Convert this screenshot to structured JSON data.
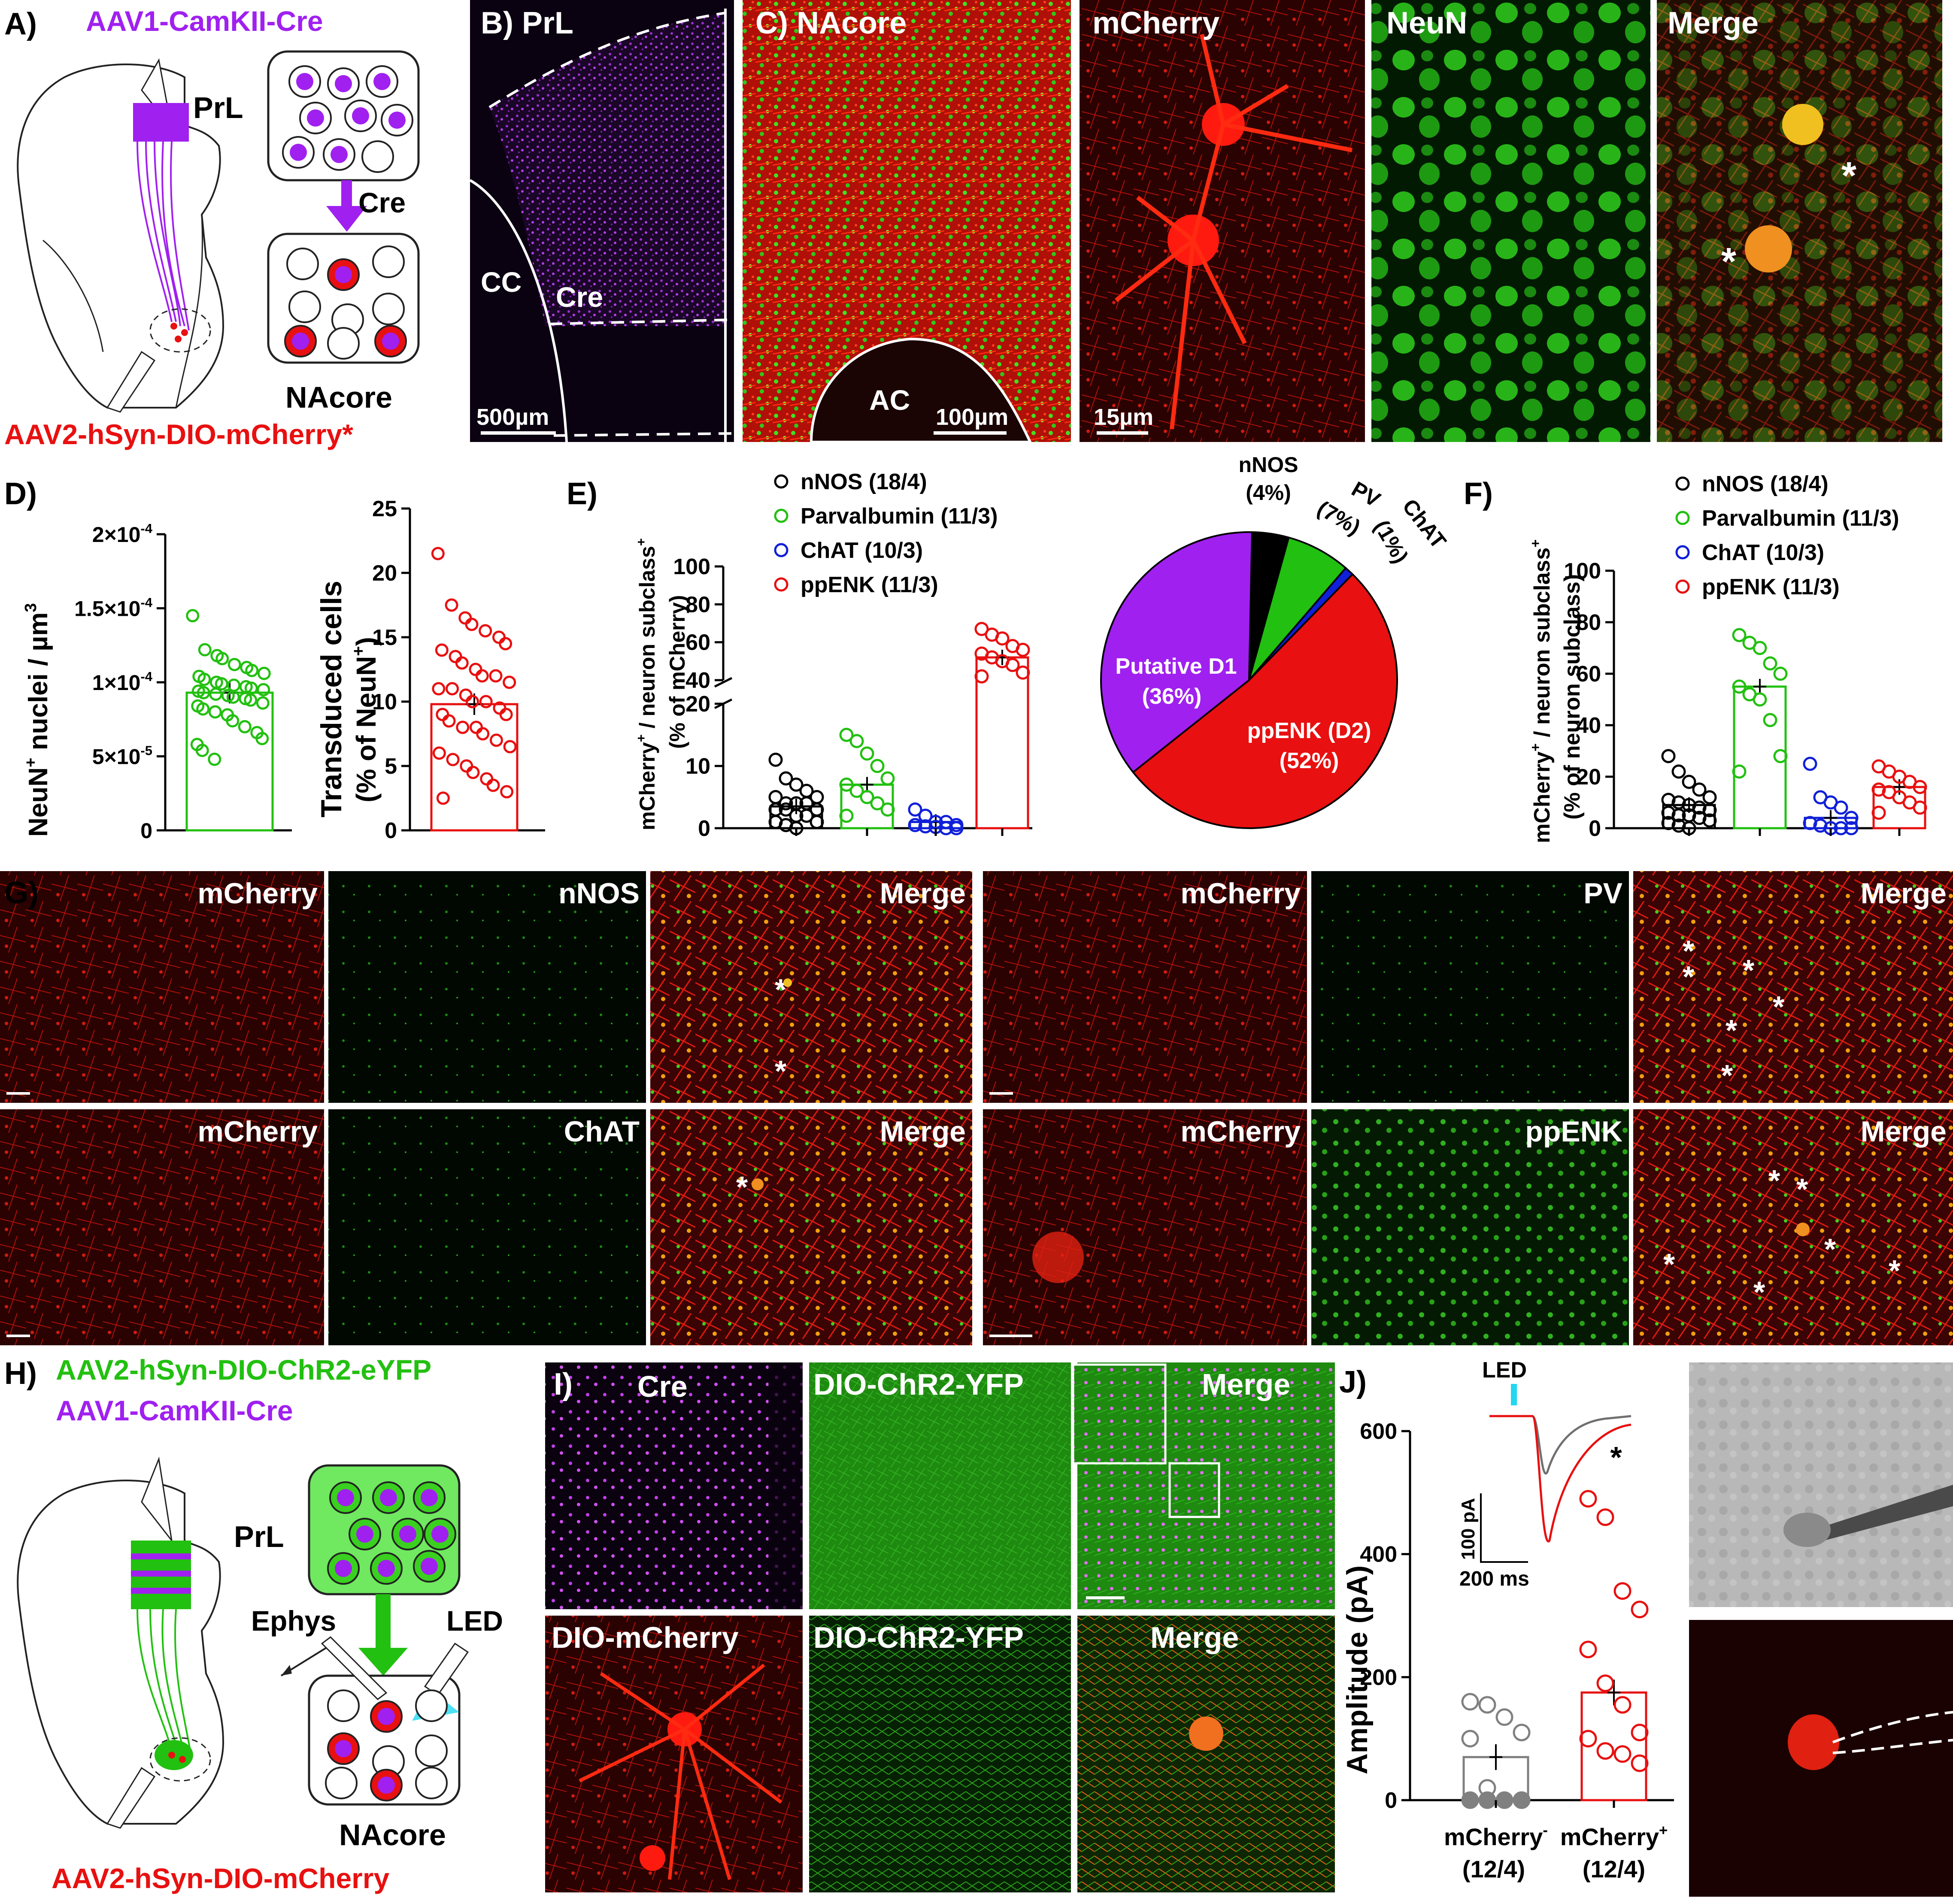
{
  "colors": {
    "purple": "#a020f0",
    "red": "#e81010",
    "green": "#22c010",
    "blue": "#1020d8",
    "gray": "#808080",
    "cyan": "#20d8f0"
  },
  "panelA": {
    "letter": "A)",
    "virus_top": "AAV1-CamKII-Cre",
    "region_top": "PrL",
    "cre_label": "Cre",
    "region_bottom": "NAcore",
    "virus_bottom": "AAV2-hSyn-DIO-mCherry*"
  },
  "panelB": {
    "title": "B) PrL",
    "cc": "CC",
    "cre": "Cre",
    "scale": "500µm"
  },
  "panelC": {
    "title": "C) NAcore",
    "ac": "AC",
    "scale": "100µm",
    "mcherry": "mCherry",
    "scale2": "15µm",
    "neun": "NeuN",
    "merge": "Merge",
    "asterisk": "*"
  },
  "panelD": {
    "letter": "D)",
    "left": {
      "ylabel_parts": [
        "NeuN",
        "+",
        " nuclei / µm",
        "3"
      ],
      "ticks": [
        "0",
        "5×10",
        "-5",
        "1×10",
        "-4",
        "1.5×10",
        "-4",
        "2×10",
        "-4"
      ],
      "tick_labels": [
        {
          "base": "0",
          "exp": ""
        },
        {
          "base": "5×10",
          "exp": "-5"
        },
        {
          "base": "1×10",
          "exp": "-4"
        },
        {
          "base": "1.5×10",
          "exp": "-4"
        },
        {
          "base": "2×10",
          "exp": "-4"
        }
      ]
    },
    "right": {
      "ylabel1": "Transduced cells",
      "ylabel2_parts": [
        "(% of  NeuN",
        "+",
        ")"
      ],
      "ticks": [
        "0",
        "5",
        "10",
        "15",
        "20",
        "25"
      ]
    }
  },
  "panelE": {
    "letter": "E)",
    "ylabel1_parts": [
      "mCherry",
      "+",
      " / neuron subclass",
      "+"
    ],
    "ylabel2": "(% of mCherry)",
    "ticks_low": [
      "0",
      "10",
      "20"
    ],
    "ticks_high": [
      "40",
      "60",
      "80",
      "100"
    ],
    "legend": [
      "nNOS (18/4)",
      "Parvalbumin (11/3)",
      "ChAT (10/3)",
      "ppENK (11/3)"
    ]
  },
  "pie": {
    "labels": {
      "nnos": "nNOS",
      "nnos_pct": "(4%)",
      "pv": "PV",
      "pv_pct": "(7%)",
      "chat": "ChAT",
      "chat_pct": "(1%)",
      "putative": "Putative  D1",
      "putative_pct": "(36%)",
      "ppenk": "ppENK (D2)",
      "ppenk_pct": "(52%)"
    }
  },
  "panelF": {
    "letter": "F)",
    "ylabel1_parts": [
      "mCherry",
      "+",
      " / neuron subclass",
      "+"
    ],
    "ylabel2": "(% of neuron subclass)",
    "ticks": [
      "0",
      "20",
      "40",
      "60",
      "80",
      "100"
    ],
    "legend": [
      "nNOS (18/4)",
      "Parvalbumin (11/3)",
      "ChAT (10/3)",
      "ppENK (11/3)"
    ]
  },
  "panelG": {
    "letter": "G)",
    "row1": [
      "mCherry",
      "nNOS",
      "Merge",
      "mCherry",
      "PV",
      "Merge"
    ],
    "row2": [
      "mCherry",
      "ChAT",
      "Merge",
      "mCherry",
      "ppENK",
      "Merge"
    ],
    "asterisk": "*"
  },
  "panelH": {
    "letter": "H)",
    "virus_top1": "AAV2-hSyn-DIO-ChR2-eYFP",
    "virus_top2": "AAV1-CamKII-Cre",
    "region_top": "PrL",
    "ephys": "Ephys",
    "led": "LED",
    "region_bottom": "NAcore",
    "virus_bottom": "AAV2-hSyn-DIO-mCherry"
  },
  "panelI": {
    "letter": "I)",
    "row1": [
      "Cre",
      "DIO-ChR2-YFP",
      "Merge"
    ],
    "row2": [
      "DIO-mCherry",
      "DIO-ChR2-YFP",
      "Merge"
    ]
  },
  "panelJ": {
    "letter": "J)",
    "ylabel": "Amplitude (pA)",
    "ticks": [
      "0",
      "200",
      "400",
      "600"
    ],
    "led": "LED",
    "scale_y": "100 pA",
    "scale_x": "200 ms",
    "asterisk": "*",
    "group1_parts": [
      "mCherry",
      "-",
      "(12/4)"
    ],
    "group2_parts": [
      "mCherry",
      "+",
      "(12/4)"
    ]
  },
  "chart_data": [
    {
      "type": "scatter",
      "panel": "D-left",
      "ylim": [
        0,
        0.0002
      ],
      "bar_mean": 9.3e-05,
      "points": [
        0.000145,
        0.000122,
        0.000118,
        0.000116,
        0.000112,
        0.00011,
        0.000108,
        0.000106,
        0.000104,
        0.000102,
        0.0001,
        9.9e-05,
        9.8e-05,
        9.7e-05,
        9.6e-05,
        9.5e-05,
        9.4e-05,
        9.3e-05,
        9.2e-05,
        9.1e-05,
        9e-05,
        8.9e-05,
        8.8e-05,
        8.6e-05,
        8.4e-05,
        8.2e-05,
        8e-05,
        7.8e-05,
        7.4e-05,
        7e-05,
        6.6e-05,
        6.2e-05,
        5.8e-05,
        5.4e-05,
        4.8e-05
      ]
    },
    {
      "type": "scatter",
      "panel": "D-right",
      "ylim": [
        0,
        25
      ],
      "bar_mean": 9.8,
      "points": [
        21.5,
        17.5,
        16.5,
        16,
        15.5,
        15,
        14.5,
        14,
        13.5,
        13,
        12.5,
        12,
        12,
        11.5,
        11,
        11,
        10.5,
        10,
        10,
        9.5,
        9,
        9,
        8.5,
        8,
        8,
        7.5,
        7,
        6.5,
        6,
        5.5,
        5,
        4.5,
        4,
        3.5,
        3,
        2.5
      ]
    },
    {
      "type": "bar",
      "panel": "E",
      "categories": [
        "nNOS (18/4)",
        "Parvalbumin (11/3)",
        "ChAT (10/3)",
        "ppENK (11/3)"
      ],
      "values": [
        3.5,
        7,
        1,
        52
      ],
      "points": [
        [
          11,
          8,
          7,
          6,
          5,
          5,
          4,
          4,
          4,
          3,
          3,
          3,
          2,
          2,
          1,
          1,
          0.5,
          0
        ],
        [
          15,
          14,
          12,
          10,
          8,
          7,
          6,
          5,
          4,
          3,
          2
        ],
        [
          3,
          2,
          1,
          1,
          0.5,
          0.5,
          0.3,
          0.2,
          0,
          0
        ],
        [
          67,
          64,
          62,
          58,
          56,
          54,
          52,
          50,
          48,
          44,
          42
        ]
      ]
    },
    {
      "type": "pie",
      "panel": "E-pie",
      "categories": [
        "nNOS",
        "PV",
        "ChAT",
        "ppENK (D2)",
        "Putative  D1"
      ],
      "values": [
        4,
        7,
        1,
        52,
        36
      ]
    },
    {
      "type": "bar",
      "panel": "F",
      "categories": [
        "nNOS (18/4)",
        "Parvalbumin (11/3)",
        "ChAT (10/3)",
        "ppENK (11/3)"
      ],
      "ylim": [
        0,
        100
      ],
      "values": [
        9,
        55,
        4,
        16
      ],
      "points": [
        [
          28,
          22,
          18,
          15,
          12,
          11,
          10,
          9,
          8,
          7,
          6,
          5,
          5,
          4,
          3,
          2,
          1,
          0
        ],
        [
          75,
          72,
          70,
          64,
          60,
          55,
          52,
          50,
          42,
          28,
          22
        ],
        [
          25,
          12,
          10,
          8,
          4,
          2,
          1,
          0,
          0,
          0
        ],
        [
          24,
          22,
          20,
          18,
          16,
          15,
          14,
          12,
          10,
          8,
          6
        ]
      ]
    },
    {
      "type": "bar",
      "panel": "J",
      "categories": [
        "mCherry- (12/4)",
        "mCherry+ (12/4)"
      ],
      "ylim": [
        0,
        600
      ],
      "values": [
        70,
        175
      ],
      "points": [
        [
          160,
          155,
          135,
          110,
          100,
          20,
          0,
          0,
          0,
          0,
          0,
          0
        ],
        [
          490,
          460,
          340,
          310,
          245,
          190,
          155,
          110,
          100,
          80,
          75,
          60
        ]
      ]
    }
  ]
}
